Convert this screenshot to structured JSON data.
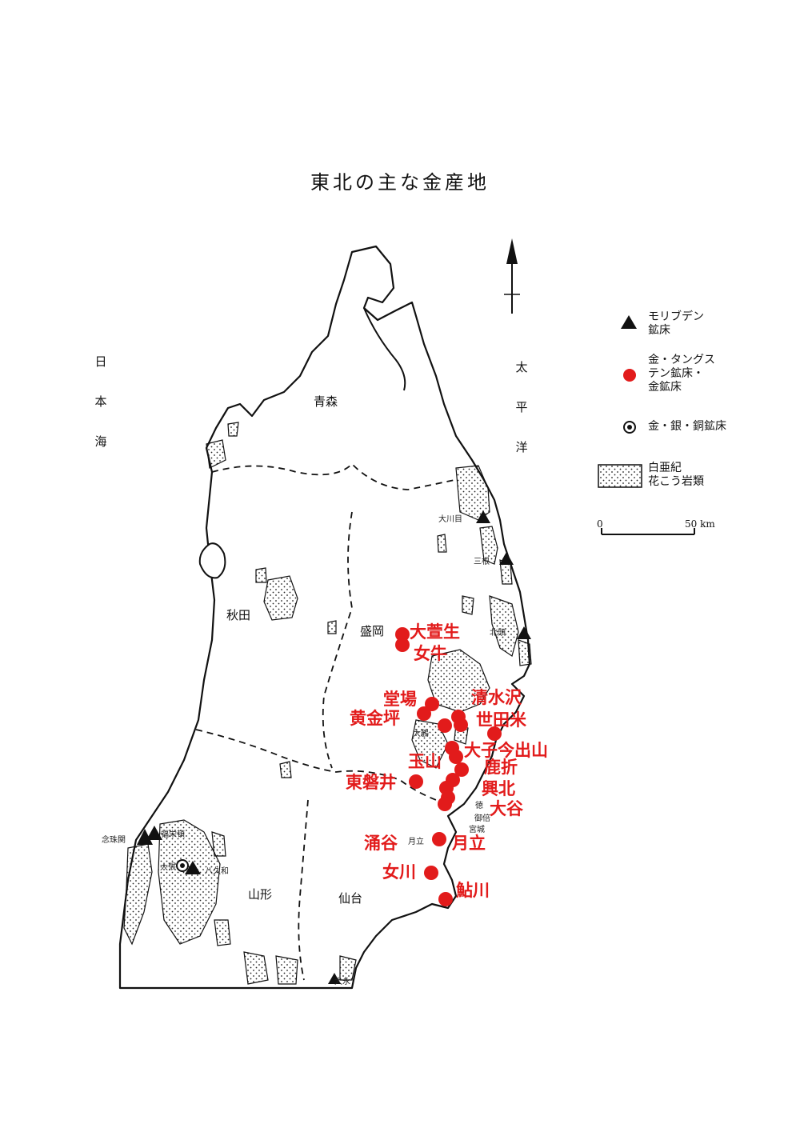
{
  "title": "東北の主な金産地",
  "seas": {
    "japan_sea": [
      "日",
      "本",
      "海"
    ],
    "pacific": [
      "太",
      "平",
      "洋"
    ]
  },
  "prefectures": {
    "aomori": "青森",
    "akita": "秋田",
    "iwate": "盛岡",
    "yamagata": "山形",
    "sendai": "仙台"
  },
  "legend": {
    "molybdenum": "モリブデン\n鉱床",
    "gold_tungsten": "金・タングス\nテン鉱床・\n金鉱床",
    "gold_silver_copper": "金・銀・銅鉱床",
    "granite": "白亜紀\n花こう岩類"
  },
  "scale": {
    "zero": "0",
    "end": "50 km"
  },
  "colors": {
    "gold_marker": "#e21b1b",
    "ink": "#111111"
  },
  "small_labels": {
    "okawame": "大川目",
    "mitsune": "三根",
    "kitaatama": "北頭",
    "nenjuseki": "念珠関",
    "fukue": "福栄頓",
    "obari": "大張",
    "yakuwa": "八久和",
    "otsutsu": "大鶴",
    "tokura": "徳",
    "gotsuru": "御倍",
    "miyagi": "宮城",
    "tsukidate": "月立",
    "ooie": "大永"
  },
  "mines": {
    "oogayu": "大萱生",
    "megyu": "女牛",
    "doba": "堂場",
    "koganezaka": "黄金坪",
    "shimizuzawa": "清水沢",
    "setamai": "世田米",
    "oshiimaide": "大子今出山",
    "tamayama": "玉山",
    "higashiiwai": "東磐井",
    "shishiori": "鹿折",
    "kohoku": "興北",
    "ootani": "大谷",
    "wakuya": "涌谷",
    "tsukidate": "月立",
    "onagawa": "女川",
    "ayukawa": "鮎川"
  }
}
